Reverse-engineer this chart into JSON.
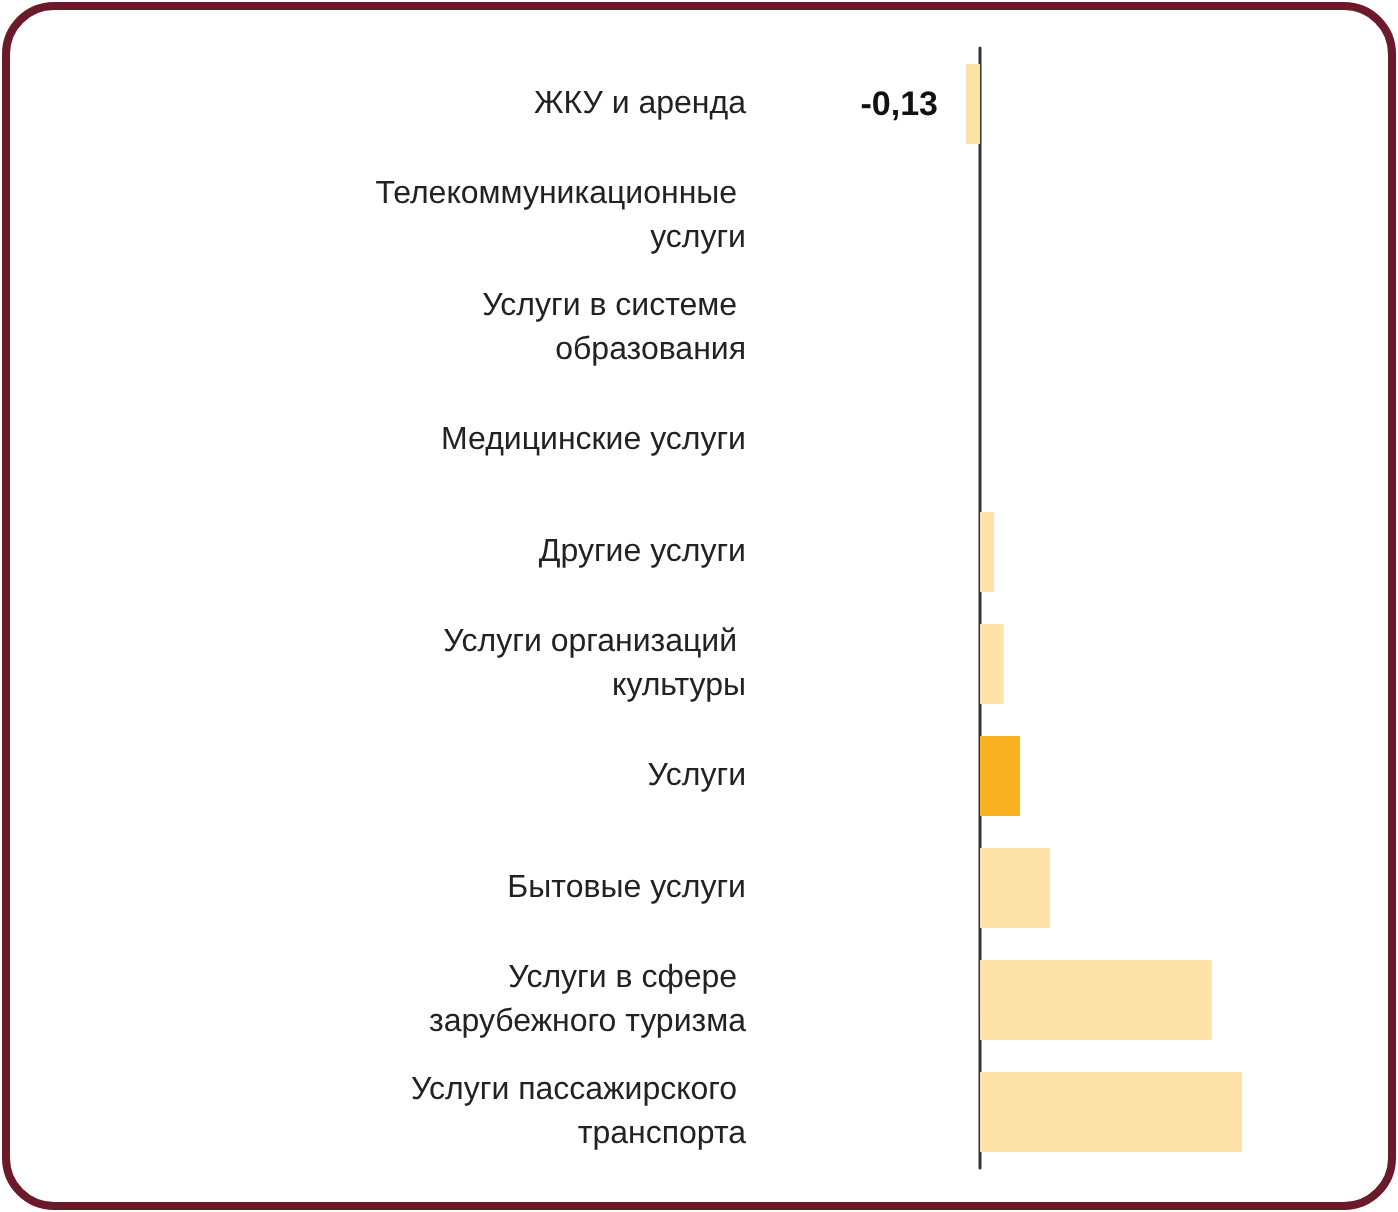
{
  "chart_data": {
    "type": "bar",
    "orientation": "horizontal",
    "tick_labels": "y",
    "categories": [
      "ЖКУ и аренда",
      "Телекоммуникационные услуги",
      "Услуги в системе образования",
      "Медицинские услуги",
      "Другие услуги",
      "Услуги организаций культуры",
      "Услуги",
      "Бытовые услуги",
      "Услуги в сфере зарубежного туризма",
      "Услуги пассажирского транспорта"
    ],
    "values": [
      -0.13,
      0,
      0,
      0,
      0.13,
      0.22,
      0.37,
      0.65,
      2.15,
      2.43
    ],
    "colors": [
      "#fde3a7",
      "#fde3a7",
      "#fde3a7",
      "#fde3a7",
      "#fde3a7",
      "#fde3a7",
      "#f9b122",
      "#fde3a7",
      "#fde3a7",
      "#fde3a7"
    ],
    "value_labels": [
      "-0,13",
      null,
      null,
      null,
      null,
      null,
      null,
      null,
      null,
      null
    ]
  }
}
